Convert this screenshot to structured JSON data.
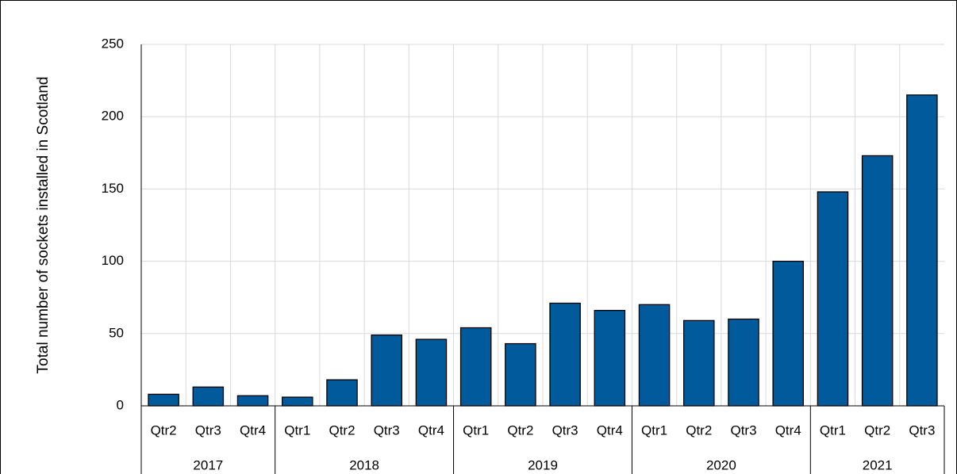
{
  "chart_data": {
    "type": "bar",
    "ylabel": "Total number of sockets installed in Scotland",
    "groups": [
      {
        "name": "2017",
        "categories": [
          "Qtr2",
          "Qtr3",
          "Qtr4"
        ],
        "values": [
          8,
          13,
          7
        ]
      },
      {
        "name": "2018",
        "categories": [
          "Qtr1",
          "Qtr2",
          "Qtr3",
          "Qtr4"
        ],
        "values": [
          6,
          18,
          49,
          46
        ]
      },
      {
        "name": "2019",
        "categories": [
          "Qtr1",
          "Qtr2",
          "Qtr3",
          "Qtr4"
        ],
        "values": [
          54,
          43,
          71,
          66
        ]
      },
      {
        "name": "2020",
        "categories": [
          "Qtr1",
          "Qtr2",
          "Qtr3",
          "Qtr4"
        ],
        "values": [
          70,
          59,
          60,
          100
        ]
      },
      {
        "name": "2021",
        "categories": [
          "Qtr1",
          "Qtr2",
          "Qtr3"
        ],
        "values": [
          148,
          173,
          215
        ]
      }
    ],
    "color": "#005a9c",
    "ylim": [
      0,
      250
    ],
    "yticks": [
      0,
      50,
      100,
      150,
      200,
      250
    ],
    "grid": true
  }
}
